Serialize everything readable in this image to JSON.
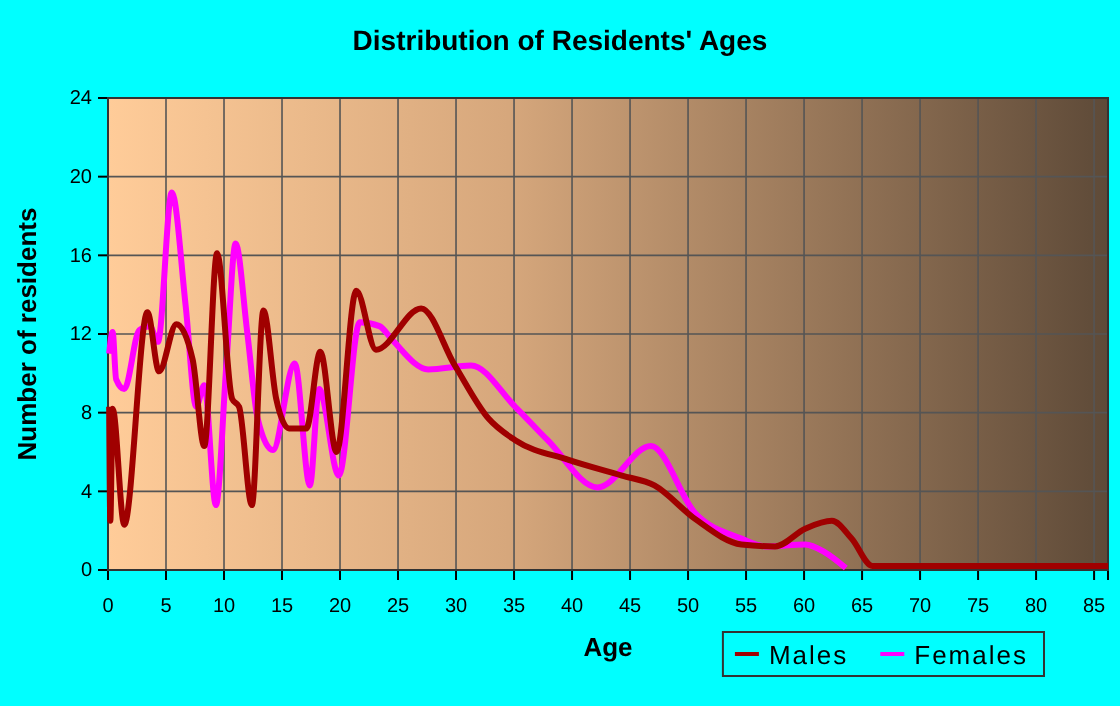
{
  "chart_data": {
    "type": "line",
    "title": "Distribution of Residents' Ages",
    "xlabel": "Age",
    "ylabel": "Number of residents",
    "xlim": [
      0,
      86.2
    ],
    "xticks": [
      0,
      5,
      10,
      15,
      20,
      25,
      30,
      35,
      40,
      45,
      50,
      55,
      60,
      65,
      70,
      75,
      80,
      85
    ],
    "ylim": [
      0,
      24
    ],
    "yticks": [
      0,
      4,
      8,
      12,
      16,
      20,
      24
    ],
    "grid": true,
    "legend": "bottom right",
    "marker": "none",
    "line_style": "solid",
    "series": [
      {
        "name": "Males",
        "color": "#a00000",
        "x": [
          0.1,
          0.2,
          0.4,
          1.4,
          3.4,
          4.4,
          5.9,
          7.3,
          8.3,
          9.4,
          10.7,
          11.3,
          12.4,
          13.4,
          14.5,
          15.6,
          17.1,
          18.3,
          19.7,
          21.4,
          23.1,
          27,
          29.9,
          32.8,
          35.1,
          39.7,
          44.3,
          47.1,
          50.6,
          54.6,
          57.5,
          60.1,
          62.4,
          64.1,
          65.9,
          68.2,
          86.2
        ],
        "values": [
          8.3,
          2.5,
          8.2,
          2.3,
          13.1,
          10.1,
          12.5,
          10.7,
          6.3,
          16.1,
          8.7,
          8.3,
          3.3,
          13.2,
          8.7,
          7.2,
          7.2,
          11.1,
          6,
          14.2,
          11.2,
          13.3,
          10.4,
          7.7,
          6.6,
          5.6,
          4.8,
          4.3,
          2.6,
          1.3,
          1.2,
          2.1,
          2.5,
          1.6,
          0.2,
          0.2,
          0.2
        ]
      },
      {
        "name": "Females",
        "color": "#ff00ff",
        "x": [
          0.1,
          0.4,
          0.7,
          1.4,
          2.7,
          3.6,
          4.3,
          5.5,
          6.7,
          7.6,
          8.3,
          9.3,
          10.2,
          11,
          12,
          12.9,
          14.2,
          16.1,
          17.4,
          18.2,
          19.9,
          21.7,
          23.4,
          24.5,
          27.6,
          31.3,
          35.1,
          37.9,
          42.2,
          46.8,
          50.6,
          54.6,
          56.7,
          60.1,
          61.8,
          63.6
        ],
        "values": [
          11,
          12.1,
          9.7,
          9.2,
          12.2,
          12.4,
          11.6,
          19.2,
          13.4,
          8.3,
          9.4,
          3.3,
          10.4,
          16.6,
          12.1,
          7.7,
          6.1,
          10.5,
          4.3,
          9.2,
          4.8,
          12.6,
          12.4,
          11.7,
          10.2,
          10.4,
          8.3,
          6.6,
          4.2,
          6.3,
          2.9,
          1.6,
          1.2,
          1.3,
          0.9,
          0.1
        ]
      }
    ]
  }
}
